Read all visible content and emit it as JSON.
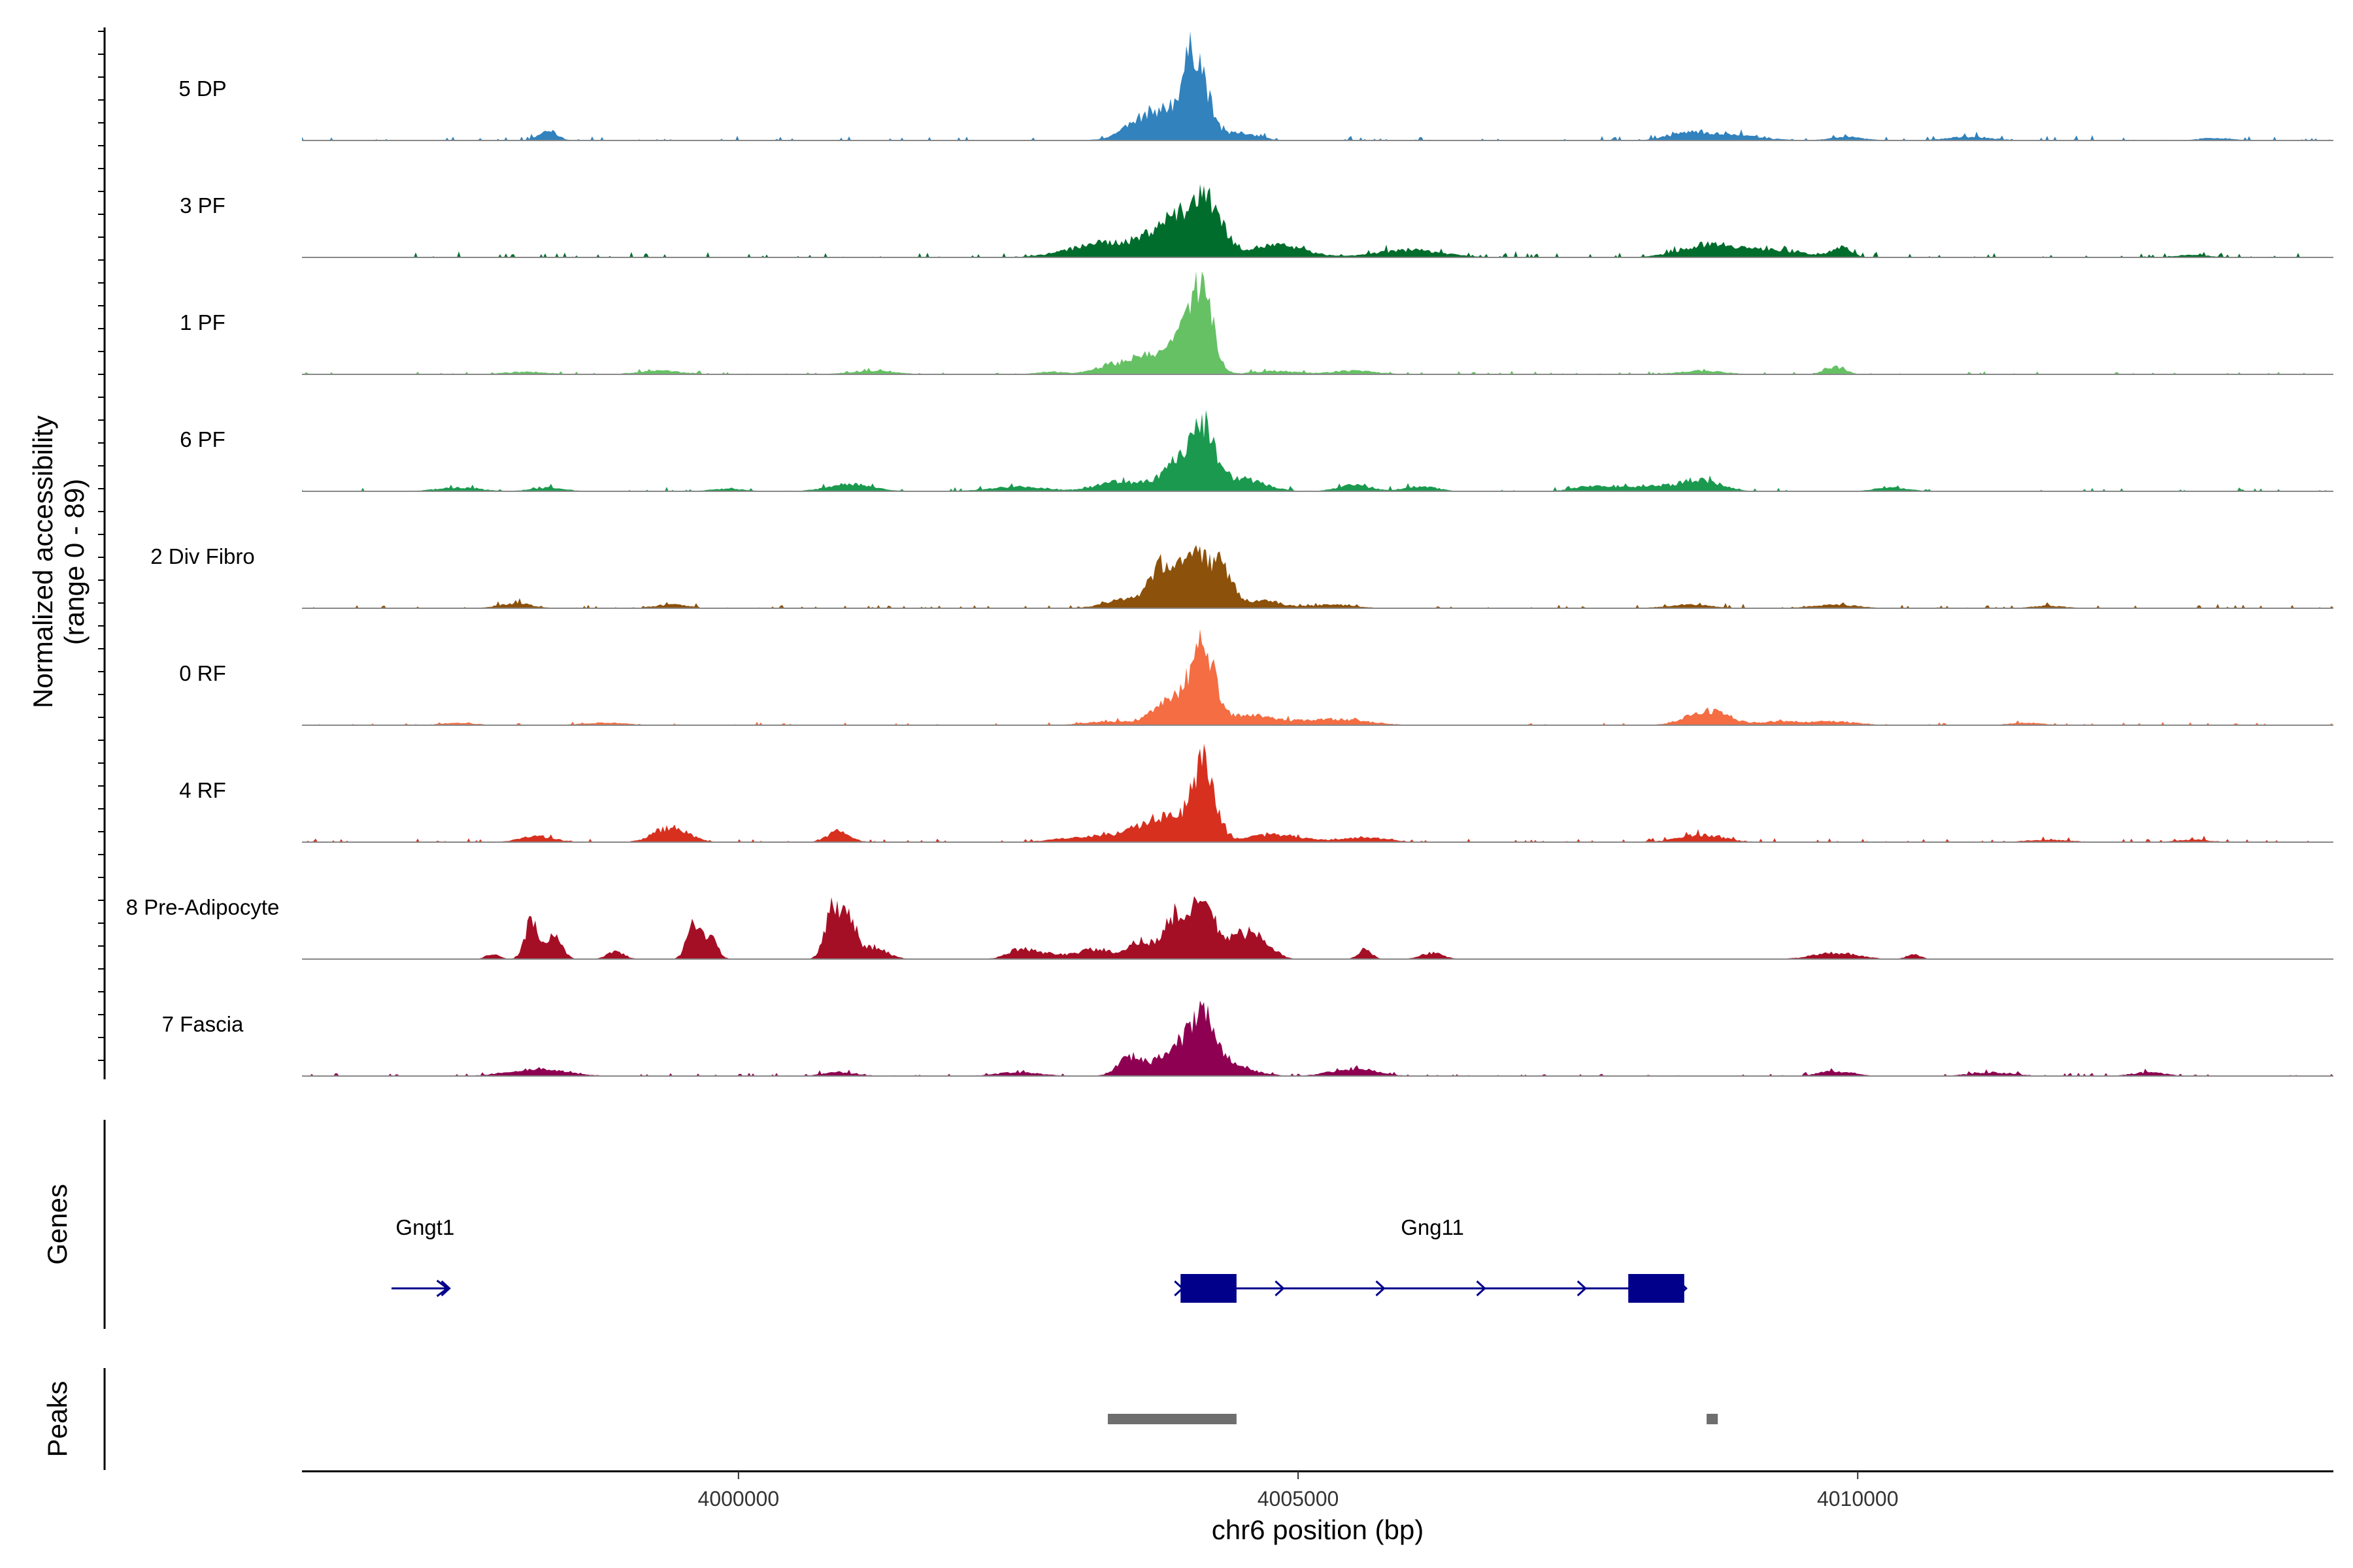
{
  "chart_data": {
    "type": "area",
    "title": "",
    "chromosome": "chr6",
    "xlabel": "chr6 position (bp)",
    "ylabel": "Normalized accessibility",
    "ylabel_range": "(range 0 - 89)",
    "xlim": [
      3996100,
      4014250
    ],
    "x_ticks": [
      4000000,
      4005000,
      4010000
    ],
    "x_tick_labels": [
      "4000000",
      "4005000",
      "4010000"
    ],
    "ylim": [
      0,
      89
    ],
    "panel_titles": {
      "genes": "Genes",
      "peaks": "Peaks"
    },
    "series": [
      {
        "name": "5 DP",
        "color": "#3182bd",
        "peaks": [
          [
            3998300,
            8,
            80
          ],
          [
            4003750,
            25,
            220
          ],
          [
            4004050,
            50,
            90
          ],
          [
            4004150,
            25,
            100
          ],
          [
            4004500,
            6,
            150
          ],
          [
            4008500,
            6,
            180
          ],
          [
            4008900,
            4,
            250
          ],
          [
            4009900,
            3,
            150
          ],
          [
            4011000,
            3,
            200
          ],
          [
            4013200,
            2,
            150
          ]
        ],
        "noise": 1.2
      },
      {
        "name": "3 PF",
        "color": "#006d2c",
        "peaks": [
          [
            4003300,
            12,
            320
          ],
          [
            4003900,
            30,
            200
          ],
          [
            4004200,
            38,
            130
          ],
          [
            4004800,
            10,
            250
          ],
          [
            4006000,
            6,
            300
          ],
          [
            4008700,
            11,
            260
          ],
          [
            4009300,
            5,
            250
          ],
          [
            4009850,
            8,
            90
          ],
          [
            4013000,
            2,
            150
          ]
        ],
        "noise": 1.5
      },
      {
        "name": "1 PF",
        "color": "#66c164",
        "peaks": [
          [
            4003300,
            6,
            140
          ],
          [
            4003650,
            14,
            180
          ],
          [
            4004000,
            28,
            140
          ],
          [
            4004150,
            60,
            90
          ],
          [
            4004800,
            3,
            200
          ],
          [
            4005500,
            3,
            200
          ],
          [
            4008600,
            3,
            200
          ],
          [
            4009800,
            6,
            90
          ],
          [
            4001200,
            3,
            200
          ],
          [
            3999300,
            3,
            200
          ],
          [
            3998100,
            2,
            200
          ],
          [
            4002800,
            2,
            150
          ]
        ],
        "noise": 0.8
      },
      {
        "name": "6 PF",
        "color": "#1b9a4f",
        "peaks": [
          [
            4003400,
            8,
            200
          ],
          [
            4003950,
            22,
            170
          ],
          [
            4004150,
            45,
            100
          ],
          [
            4004500,
            10,
            200
          ],
          [
            4001000,
            6,
            200
          ],
          [
            4002500,
            4,
            250
          ],
          [
            4005500,
            5,
            150
          ],
          [
            4006100,
            4,
            150
          ],
          [
            4008600,
            9,
            180
          ],
          [
            4007600,
            4,
            150
          ],
          [
            4008100,
            4,
            250
          ],
          [
            3997500,
            3,
            200
          ],
          [
            3998300,
            3,
            150
          ],
          [
            3999900,
            2,
            150
          ],
          [
            4010300,
            3,
            150
          ]
        ],
        "noise": 1.0
      },
      {
        "name": "2 Div Fibro",
        "color": "#8c510a",
        "peaks": [
          [
            4003500,
            8,
            200
          ],
          [
            4003800,
            32,
            110
          ],
          [
            4004050,
            40,
            110
          ],
          [
            4004300,
            35,
            110
          ],
          [
            4004700,
            6,
            150
          ],
          [
            4005300,
            3,
            200
          ],
          [
            3998000,
            4,
            150
          ],
          [
            3999400,
            3,
            150
          ],
          [
            4008500,
            3,
            200
          ],
          [
            4009800,
            3,
            200
          ],
          [
            4011700,
            2,
            150
          ]
        ],
        "noise": 1.0
      },
      {
        "name": "0 RF",
        "color": "#f46d43",
        "peaks": [
          [
            4003900,
            22,
            170
          ],
          [
            4004150,
            58,
            100
          ],
          [
            4004500,
            8,
            250
          ],
          [
            4005300,
            5,
            300
          ],
          [
            4003300,
            3,
            200
          ],
          [
            4008650,
            12,
            180
          ],
          [
            4009300,
            3,
            200
          ],
          [
            4009800,
            3,
            200
          ],
          [
            3998800,
            2,
            200
          ],
          [
            3997500,
            2,
            150
          ],
          [
            4011500,
            2,
            150
          ]
        ],
        "noise": 0.8
      },
      {
        "name": "4 RF",
        "color": "#d7301f",
        "peaks": [
          [
            4004150,
            60,
            100
          ],
          [
            4003800,
            20,
            220
          ],
          [
            4003200,
            5,
            300
          ],
          [
            4004800,
            6,
            250
          ],
          [
            3999400,
            12,
            150
          ],
          [
            4000900,
            9,
            100
          ],
          [
            3998200,
            5,
            150
          ],
          [
            4008600,
            6,
            200
          ],
          [
            4005600,
            4,
            200
          ],
          [
            4011700,
            2,
            200
          ],
          [
            4013000,
            2,
            150
          ]
        ],
        "noise": 1.0
      },
      {
        "name": "8 Pre-Adipocyte",
        "color": "#a50f26",
        "peaks": [
          [
            3998150,
            30,
            60
          ],
          [
            3998350,
            18,
            70
          ],
          [
            3999600,
            30,
            60
          ],
          [
            3999750,
            18,
            60
          ],
          [
            4000850,
            45,
            70
          ],
          [
            4001000,
            28,
            60
          ],
          [
            4001200,
            10,
            120
          ],
          [
            4002700,
            5,
            200
          ],
          [
            4003200,
            8,
            150
          ],
          [
            4003600,
            15,
            100
          ],
          [
            4003900,
            35,
            100
          ],
          [
            4004150,
            45,
            100
          ],
          [
            4004500,
            20,
            150
          ],
          [
            4004700,
            8,
            100
          ],
          [
            4005600,
            8,
            60
          ],
          [
            4006200,
            5,
            100
          ],
          [
            4002500,
            5,
            100
          ],
          [
            4009800,
            5,
            200
          ],
          [
            4010500,
            4,
            60
          ],
          [
            3997800,
            4,
            60
          ],
          [
            3998900,
            6,
            80
          ]
        ],
        "noise": 0
      },
      {
        "name": "7 Fascia",
        "color": "#8e0152",
        "peaks": [
          [
            4003500,
            15,
            110
          ],
          [
            4003900,
            20,
            160
          ],
          [
            4004150,
            42,
            120
          ],
          [
            4004400,
            8,
            200
          ],
          [
            4005500,
            6,
            200
          ],
          [
            3998200,
            6,
            250
          ],
          [
            4000900,
            3,
            150
          ],
          [
            4009800,
            4,
            150
          ],
          [
            4011200,
            3,
            200
          ],
          [
            4012600,
            3,
            150
          ],
          [
            4002500,
            3,
            200
          ]
        ],
        "noise": 0.8
      }
    ],
    "genes": [
      {
        "name": "Gngt1",
        "start": 3996900,
        "end": 3997400,
        "strand": "+",
        "exons": [],
        "label_x": 3997200
      },
      {
        "name": "Gng11",
        "start": 4003950,
        "end": 4008450,
        "strand": "+",
        "exons": [
          [
            4003950,
            4004450
          ],
          [
            4007950,
            4008450
          ]
        ],
        "label_x": 4006200
      }
    ],
    "peak_regions": [
      [
        4003300,
        4004450
      ],
      [
        4008650,
        4008750
      ]
    ]
  }
}
